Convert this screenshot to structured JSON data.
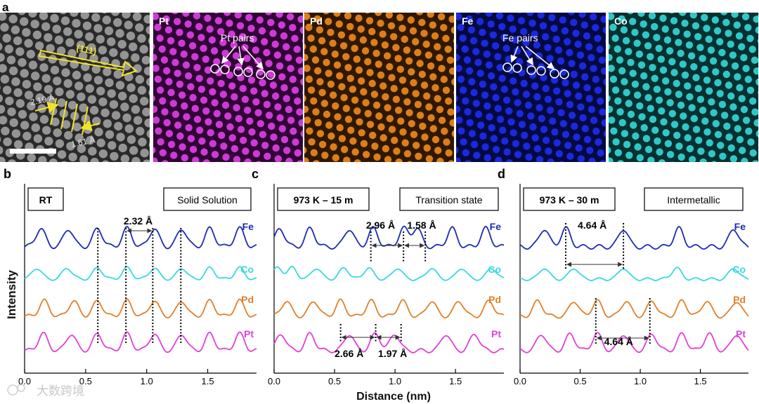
{
  "panel_a": {
    "letter": "a",
    "tiles": [
      {
        "label": "",
        "color": "#9a9a9a",
        "bg": "#2a2a2a"
      },
      {
        "label": "Pt",
        "color": "#e040e8",
        "bg": "#300535"
      },
      {
        "label": "Pd",
        "color": "#f08a1c",
        "bg": "#2e1800"
      },
      {
        "label": "Fe",
        "color": "#1e2cf0",
        "bg": "#040a40"
      },
      {
        "label": "Co",
        "color": "#35d8d8",
        "bg": "#083030"
      }
    ],
    "direction_label": "(111)",
    "spacing_1": "2.19 Å",
    "spacing_2": "1.61 Å",
    "pt_pairs": "Pt pairs",
    "fe_pairs": "Fe pairs"
  },
  "chart_data": [
    {
      "type": "line",
      "letter": "b",
      "condition": "RT",
      "state": "Solid Solution",
      "xlim": [
        0.0,
        1.9
      ],
      "xticks": [
        "0.0",
        "0.5",
        "1.0",
        "1.5"
      ],
      "series": [
        {
          "name": "Fe",
          "color": "#1c2bb5"
        },
        {
          "name": "Co",
          "color": "#38d8e0"
        },
        {
          "name": "Pd",
          "color": "#e0802a"
        },
        {
          "name": "Pt",
          "color": "#e040d8"
        }
      ],
      "annotations": [
        "2.32 Å"
      ]
    },
    {
      "type": "line",
      "letter": "c",
      "condition": "973 K – 15 m",
      "state": "Transition state",
      "xlim": [
        0.0,
        1.9
      ],
      "xticks": [
        "0.0",
        "0.5",
        "1.0",
        "1.5"
      ],
      "xlabel": "Distance (nm)",
      "series": [
        {
          "name": "Fe",
          "color": "#1c2bb5"
        },
        {
          "name": "Co",
          "color": "#38d8e0"
        },
        {
          "name": "Pd",
          "color": "#e0802a"
        },
        {
          "name": "Pt",
          "color": "#e040d8"
        }
      ],
      "annotations": [
        "2.96 Å",
        "1.58 Å",
        "2.66 Å",
        "1.97 Å"
      ]
    },
    {
      "type": "line",
      "letter": "d",
      "condition": "973 K – 30 m",
      "state": "Intermetallic",
      "xlim": [
        0.0,
        1.9
      ],
      "xticks": [
        "0.0",
        "0.5",
        "1.0",
        "1.5"
      ],
      "series": [
        {
          "name": "Fe",
          "color": "#1c2bb5"
        },
        {
          "name": "Co",
          "color": "#38d8e0"
        },
        {
          "name": "Pd",
          "color": "#e0802a"
        },
        {
          "name": "Pt",
          "color": "#e040d8"
        }
      ],
      "annotations": [
        "4.64 Å",
        "4.64 Å"
      ]
    }
  ],
  "ylabel": "Intensity",
  "watermark": "大数跨境"
}
